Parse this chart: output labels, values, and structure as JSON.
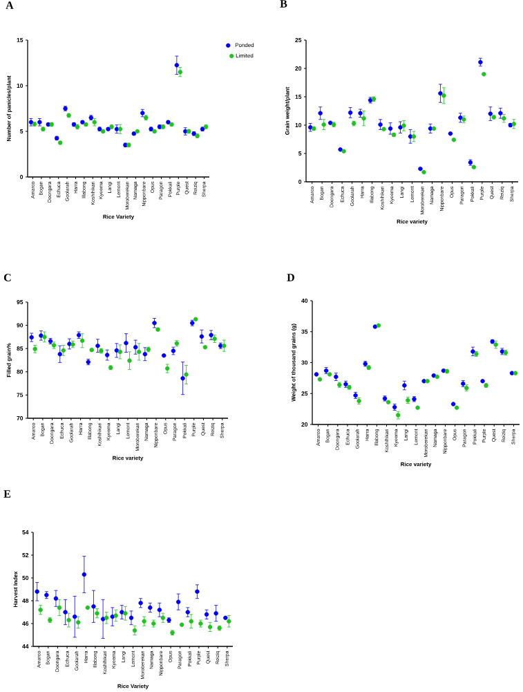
{
  "chart_data": [
    {
      "type": "scatter",
      "title": "A",
      "xlabel": "Rice Variety",
      "ylabel": "Number of panicles/plant",
      "marker": "circle",
      "legend": "right",
      "categories": [
        "Amaroo",
        "Bogan",
        "Doongara",
        "Echuca",
        "Goolarah",
        "Harra",
        "Illabong",
        "Koshihikari",
        "Kyeema",
        "Langi",
        "Lemont",
        "Moroberekan",
        "Namaga",
        "Nipponbare",
        "Opus",
        "Paragon",
        "Pokkali",
        "Purple",
        "Quest",
        "Reiziq",
        "Sherpa"
      ],
      "ylim": [
        0,
        15
      ],
      "yticks": [
        0,
        5,
        10,
        15
      ],
      "series": [
        {
          "name": "Ponded",
          "color": "#0000ee",
          "values": [
            6.0,
            6.0,
            5.75,
            4.25,
            7.5,
            5.75,
            6.0,
            6.5,
            5.25,
            5.25,
            5.25,
            3.5,
            4.75,
            7.0,
            5.25,
            5.5,
            6.0,
            12.25,
            5.0,
            4.75,
            5.25
          ],
          "errors": [
            0.4,
            0.4,
            0.15,
            0.2,
            0.25,
            0.2,
            0.15,
            0.25,
            0.2,
            0.15,
            0.45,
            0.2,
            0.15,
            0.4,
            0.2,
            0.2,
            0.15,
            1.0,
            0.4,
            0.2,
            0.2
          ]
        },
        {
          "name": "Limited",
          "color": "#22c022",
          "values": [
            5.8,
            5.25,
            5.75,
            3.75,
            6.75,
            5.5,
            5.75,
            6.0,
            5.0,
            5.5,
            5.25,
            3.5,
            5.0,
            6.5,
            5.0,
            5.5,
            5.75,
            11.5,
            5.0,
            4.5,
            5.5
          ],
          "errors": [
            0.2,
            0.2,
            0.2,
            0.15,
            0.2,
            0.25,
            0.15,
            0.4,
            0.15,
            0.2,
            0.5,
            0.2,
            null,
            0.25,
            0.15,
            0.2,
            0.15,
            0.5,
            0.2,
            0.2,
            0.2
          ]
        }
      ]
    },
    {
      "type": "scatter",
      "title": "B",
      "xlabel": "Rice variety",
      "ylabel": "Grain weight/plant",
      "marker": "circle",
      "categories": [
        "Amaroo",
        "Bogan",
        "Doongara",
        "Echuca",
        "Goolarah",
        "Harra",
        "Illabong",
        "Koshihikari",
        "Kyeema",
        "Langi",
        "Lemont",
        "Moroberekan",
        "Namaga",
        "Nipponbare",
        "Opus",
        "Paragon",
        "Pokkali",
        "Purple",
        "Quest",
        "Reiziq",
        "Sherpa"
      ],
      "ylim": [
        0,
        25
      ],
      "yticks": [
        0,
        5,
        10,
        15,
        20,
        25
      ],
      "series": [
        {
          "color": "#0000ee",
          "values": [
            9.6,
            12.1,
            10.4,
            5.7,
            12.2,
            12.1,
            14.4,
            10.1,
            9.4,
            9.6,
            8.0,
            2.3,
            9.4,
            15.6,
            8.5,
            11.3,
            3.4,
            21.1,
            12.0,
            12.1,
            10.0
          ],
          "errors": [
            0.7,
            1.1,
            null,
            null,
            0.9,
            0.7,
            0.5,
            0.9,
            1.0,
            1.0,
            1.2,
            null,
            0.8,
            1.6,
            null,
            0.8,
            0.5,
            0.7,
            1.2,
            0.9,
            0.3
          ]
        },
        {
          "color": "#22c022",
          "values": [
            9.4,
            10.1,
            10.1,
            5.4,
            10.3,
            11.2,
            14.6,
            9.3,
            8.3,
            9.9,
            8.0,
            1.7,
            9.4,
            15.2,
            7.4,
            11.0,
            2.6,
            19.0,
            11.4,
            11.2,
            10.2
          ],
          "errors": [
            0.3,
            0.9,
            0.4,
            null,
            0.4,
            1.3,
            0.4,
            null,
            0.3,
            0.9,
            0.9,
            null,
            null,
            1.4,
            null,
            0.6,
            null,
            null,
            0.3,
            0.7,
            0.8
          ]
        }
      ]
    },
    {
      "type": "scatter",
      "title": "C",
      "xlabel": "Rice variety",
      "ylabel": "Filled grain%",
      "marker": "circle",
      "categories": [
        "Amaroo",
        "Bogan",
        "Doongara",
        "Echuca",
        "Goolarah",
        "Harra",
        "Illabong",
        "Koshihikari",
        "Kyeema",
        "Langi",
        "Lemont",
        "Moroberekan",
        "Namaga",
        "Nipponbare",
        "Opus",
        "Paragon",
        "Pokkali",
        "Purple",
        "Quest",
        "Reiziq",
        "Sherpa"
      ],
      "ylim": [
        70,
        95
      ],
      "yticks": [
        70,
        75,
        80,
        85,
        90,
        95
      ],
      "series": [
        {
          "color": "#0000ee",
          "values": [
            87.4,
            87.8,
            86.6,
            83.8,
            86.0,
            87.9,
            82.1,
            85.6,
            83.6,
            84.6,
            86.2,
            85.3,
            83.8,
            90.5,
            83.5,
            84.5,
            78.6,
            90.5,
            87.6,
            87.9,
            85.6
          ],
          "errors": [
            0.9,
            1.0,
            0.6,
            1.8,
            1.1,
            0.7,
            0.6,
            1.4,
            1.1,
            1.5,
            2.0,
            1.5,
            1.4,
            1.0,
            null,
            0.8,
            3.5,
            0.6,
            1.4,
            1.0,
            0.6
          ]
        },
        {
          "color": "#22c022",
          "values": [
            84.9,
            87.5,
            85.7,
            84.6,
            85.9,
            86.7,
            84.7,
            84.5,
            80.9,
            84.3,
            82.4,
            84.3,
            84.8,
            89.1,
            80.7,
            86.1,
            79.4,
            91.3,
            85.3,
            87.1,
            85.6
          ],
          "errors": [
            0.8,
            1.1,
            0.7,
            1.1,
            0.7,
            1.5,
            0.3,
            0.5,
            0.4,
            1.5,
            1.9,
            1.8,
            0.5,
            0.3,
            0.9,
            0.6,
            2.0,
            null,
            null,
            0.8,
            1.2
          ]
        }
      ]
    },
    {
      "type": "scatter",
      "title": "D",
      "xlabel": "Rice variety",
      "ylabel": "Weight of thousand grains (g)",
      "marker": "circle",
      "categories": [
        "Amaroo",
        "Bogan",
        "Doongara",
        "Echuca",
        "Goolarah",
        "Harra",
        "Illabong",
        "Koshihikari",
        "Kyeema",
        "Langi",
        "Lemont",
        "Moroberekan",
        "Namaga",
        "Nipponbare",
        "Opus",
        "Paragon",
        "Pokkali",
        "Purple",
        "Quest",
        "Reiziq",
        "Sherpa"
      ],
      "ylim": [
        20,
        40
      ],
      "yticks": [
        20,
        25,
        30,
        35,
        40
      ],
      "series": [
        {
          "color": "#0000ee",
          "values": [
            28.1,
            28.7,
            27.7,
            26.5,
            24.7,
            29.8,
            35.8,
            24.2,
            22.8,
            26.3,
            24.1,
            27.0,
            27.9,
            28.7,
            23.3,
            26.6,
            31.8,
            27.0,
            33.4,
            31.8,
            28.3
          ],
          "errors": [
            null,
            0.5,
            0.6,
            0.5,
            0.5,
            0.4,
            null,
            0.4,
            0.5,
            0.7,
            0.4,
            null,
            null,
            null,
            null,
            0.5,
            0.7,
            null,
            0.3,
            0.5,
            null
          ]
        },
        {
          "color": "#22c022",
          "values": [
            27.3,
            28.1,
            26.4,
            26.0,
            23.8,
            29.2,
            36.0,
            23.6,
            21.5,
            23.9,
            22.7,
            27.0,
            27.7,
            28.6,
            22.7,
            25.9,
            31.4,
            26.3,
            32.9,
            31.6,
            28.3
          ],
          "errors": [
            null,
            null,
            0.4,
            0.3,
            0.5,
            0.3,
            null,
            null,
            0.6,
            0.5,
            null,
            null,
            null,
            0.3,
            null,
            0.5,
            0.4,
            0.3,
            0.6,
            0.4,
            null
          ]
        }
      ]
    },
    {
      "type": "scatter",
      "title": "E",
      "xlabel": "Rice Variety",
      "ylabel": "Harvest Index",
      "marker": "circle",
      "categories": [
        "Amaroo",
        "Bogan",
        "Doongara",
        "Echuca",
        "Goolarah",
        "Harra",
        "Illabong",
        "Koshihikari",
        "Kyeema",
        "Langi",
        "Lemont",
        "Moroberekan",
        "Namaga",
        "Nipponbare",
        "Opus",
        "Paragon",
        "Pokkali",
        "Purple",
        "Quest",
        "Reiziq",
        "Sherpa"
      ],
      "ylim": [
        44,
        54
      ],
      "yticks": [
        44,
        46,
        48,
        50,
        52,
        54
      ],
      "series": [
        {
          "color": "#0000ee",
          "values": [
            48.8,
            48.5,
            48.2,
            47.0,
            46.6,
            50.3,
            47.5,
            46.4,
            46.6,
            47.0,
            46.5,
            47.8,
            47.4,
            47.2,
            46.3,
            47.9,
            47.0,
            48.8,
            46.8,
            46.9,
            46.5
          ],
          "errors": [
            0.8,
            0.3,
            0.7,
            1.1,
            1.8,
            1.6,
            1.4,
            1.7,
            0.8,
            0.6,
            0.6,
            0.4,
            0.4,
            0.6,
            0.2,
            0.7,
            0.4,
            0.6,
            0.4,
            0.7,
            null
          ]
        },
        {
          "color": "#22c022",
          "values": [
            47.2,
            46.3,
            47.4,
            46.3,
            46.1,
            47.4,
            46.9,
            46.5,
            46.7,
            46.9,
            45.4,
            46.2,
            46.0,
            46.5,
            45.2,
            45.9,
            46.2,
            46.0,
            45.7,
            45.6,
            46.2
          ],
          "errors": [
            0.4,
            0.2,
            0.7,
            0.6,
            0.5,
            null,
            0.4,
            0.5,
            0.5,
            0.6,
            0.4,
            0.4,
            0.3,
            0.4,
            0.2,
            null,
            0.6,
            0.3,
            0.4,
            0.2,
            0.5
          ]
        }
      ]
    }
  ]
}
